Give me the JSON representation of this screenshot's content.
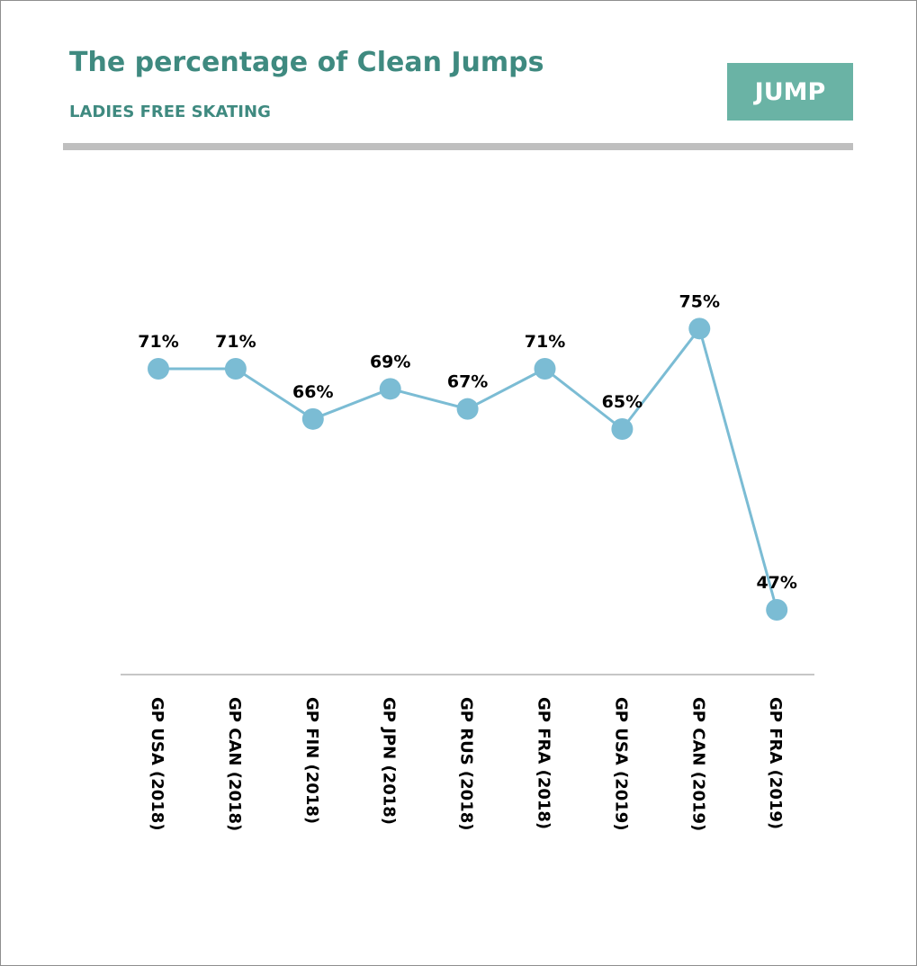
{
  "header": {
    "title": "The percentage of Clean Jumps",
    "subtitle": "LADIES FREE SKATING",
    "badge": "JUMP"
  },
  "colors": {
    "accent": "#3f8a80",
    "badge_bg": "#6ab3a5",
    "series": "#7bbcd4",
    "rule": "#bfbfbf"
  },
  "chart_data": {
    "type": "line",
    "categories": [
      "GP USA (2018)",
      "GP CAN (2018)",
      "GP FIN (2018)",
      "GP JPN (2018)",
      "GP RUS (2018)",
      "GP FRA (2018)",
      "GP USA (2019)",
      "GP CAN (2019)",
      "GP FRA (2019)"
    ],
    "values": [
      71,
      71,
      66,
      69,
      67,
      71,
      65,
      75,
      47
    ],
    "data_labels": [
      "71%",
      "71%",
      "66%",
      "69%",
      "67%",
      "71%",
      "65%",
      "75%",
      "47%"
    ],
    "title": "The percentage of Clean Jumps",
    "subtitle": "LADIES FREE SKATING",
    "xlabel": "",
    "ylabel": "",
    "ylim": [
      0,
      100
    ],
    "y_axis_visible": false,
    "grid": false,
    "legend": "none",
    "marker": "circle"
  }
}
